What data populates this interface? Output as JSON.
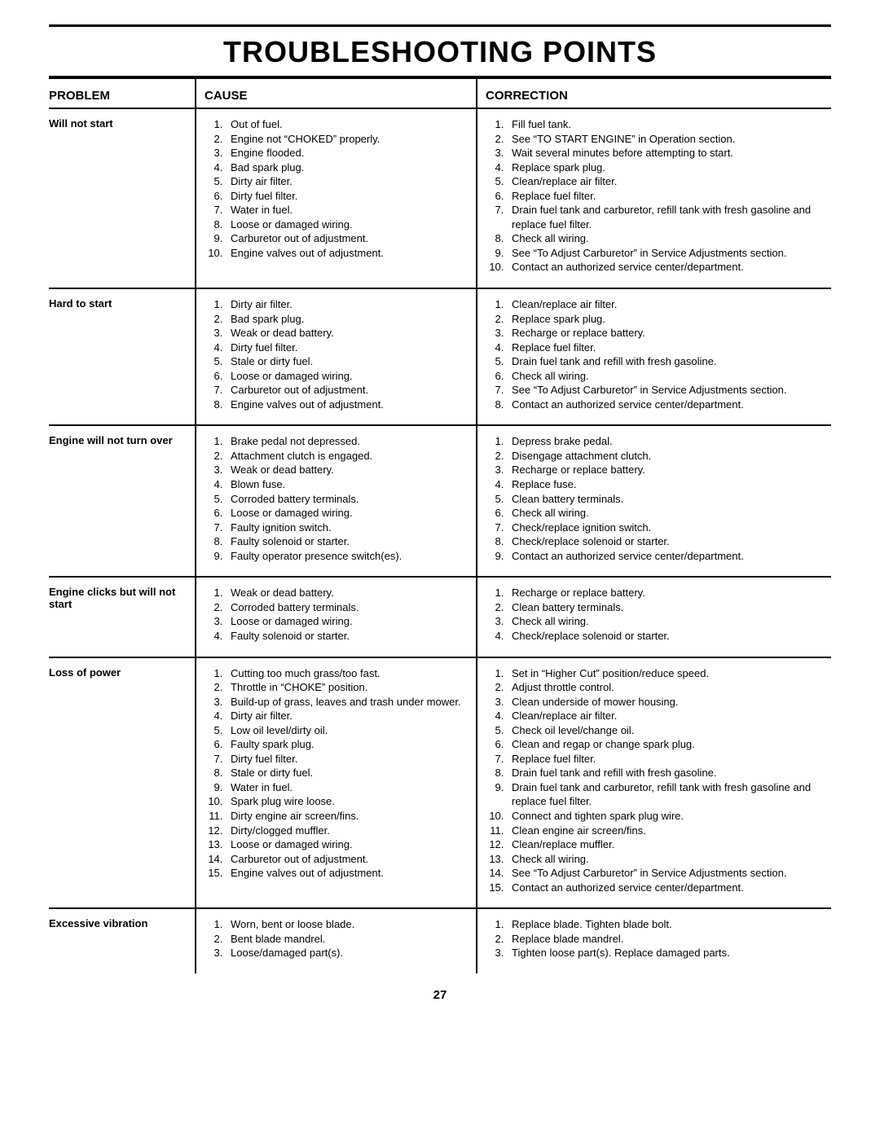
{
  "title": "TROUBLESHOOTING POINTS",
  "pageNumber": "27",
  "headers": {
    "problem": "PROBLEM",
    "cause": "CAUSE",
    "correction": "CORRECTION"
  },
  "rows": [
    {
      "problem": "Will not start",
      "causes": [
        "Out of fuel.",
        "Engine not “CHOKED” properly.",
        "Engine flooded.",
        "Bad spark plug.",
        "Dirty air filter.",
        "Dirty fuel filter.",
        "Water in fuel.",
        "Loose or damaged wiring.",
        "Carburetor out of adjustment.",
        "Engine valves out of adjustment."
      ],
      "corrections": [
        "Fill fuel tank.",
        "See “TO START ENGINE” in Operation section.",
        "Wait several minutes before attempting to start.",
        "Replace spark plug.",
        "Clean/replace air filter.",
        "Replace fuel filter.",
        "Drain fuel tank and carburetor, refill tank with fresh gasoline and replace fuel filter.",
        "Check all wiring.",
        "See “To Adjust Carburetor” in Service Adjustments section.",
        "Contact an authorized service center/department."
      ]
    },
    {
      "problem": "Hard to start",
      "causes": [
        "Dirty air filter.",
        "Bad spark plug.",
        "Weak or dead battery.",
        "Dirty fuel filter.",
        "Stale or dirty fuel.",
        "Loose or damaged wiring.",
        "Carburetor out of adjustment.",
        "Engine valves out of adjustment."
      ],
      "corrections": [
        "Clean/replace air filter.",
        "Replace spark plug.",
        "Recharge or replace battery.",
        "Replace fuel filter.",
        "Drain fuel tank and refill with fresh gasoline.",
        "Check all wiring.",
        "See “To Adjust Carburetor” in Service Adjustments section.",
        "Contact an authorized service center/department."
      ]
    },
    {
      "problem": "Engine will not turn over",
      "causes": [
        "Brake pedal not depressed.",
        "Attachment clutch is engaged.",
        "Weak or dead battery.",
        "Blown fuse.",
        "Corroded battery terminals.",
        "Loose or damaged wiring.",
        "Faulty ignition switch.",
        "Faulty solenoid or starter.",
        "Faulty operator presence switch(es)."
      ],
      "corrections": [
        "Depress brake pedal.",
        "Disengage attachment clutch.",
        "Recharge or replace battery.",
        "Replace fuse.",
        "Clean battery terminals.",
        "Check all wiring.",
        "Check/replace ignition switch.",
        "Check/replace solenoid or starter.",
        "Contact an authorized service center/department."
      ]
    },
    {
      "problem": "Engine clicks but will not start",
      "causes": [
        "Weak or dead battery.",
        "Corroded battery terminals.",
        "Loose or damaged wiring.",
        "Faulty solenoid or starter."
      ],
      "corrections": [
        "Recharge or replace battery.",
        "Clean battery terminals.",
        "Check all wiring.",
        "Check/replace solenoid or starter."
      ]
    },
    {
      "problem": "Loss of power",
      "causes": [
        "Cutting too much grass/too fast.",
        "Throttle in “CHOKE” position.",
        "Build-up of grass, leaves and trash under mower.",
        "Dirty air filter.",
        "Low oil level/dirty oil.",
        "Faulty spark plug.",
        "Dirty fuel filter.",
        "Stale or dirty fuel.",
        "Water in fuel.",
        "Spark plug wire loose.",
        "Dirty engine air screen/fins.",
        "Dirty/clogged muffler.",
        "Loose or damaged wiring.",
        "Carburetor out of adjustment.",
        "Engine valves out of adjustment."
      ],
      "corrections": [
        "Set in “Higher Cut” position/reduce speed.",
        "Adjust throttle control.",
        "Clean underside of mower housing.",
        "Clean/replace air filter.",
        "Check oil level/change oil.",
        "Clean and regap or change spark plug.",
        "Replace fuel filter.",
        "Drain fuel tank and refill with fresh gasoline.",
        "Drain fuel tank and carburetor, refill tank with fresh gasoline and replace fuel filter.",
        "Connect and tighten spark plug wire.",
        "Clean engine air screen/fins.",
        "Clean/replace muffler.",
        "Check all wiring.",
        "See “To Adjust Carburetor” in Service Adjustments section.",
        "Contact an authorized service center/department."
      ]
    },
    {
      "problem": "Excessive vibration",
      "causes": [
        "Worn, bent or loose blade.",
        "Bent blade mandrel.",
        "Loose/damaged part(s)."
      ],
      "corrections": [
        "Replace blade.  Tighten blade bolt.",
        "Replace blade mandrel.",
        "Tighten loose part(s).  Replace damaged parts."
      ]
    }
  ]
}
